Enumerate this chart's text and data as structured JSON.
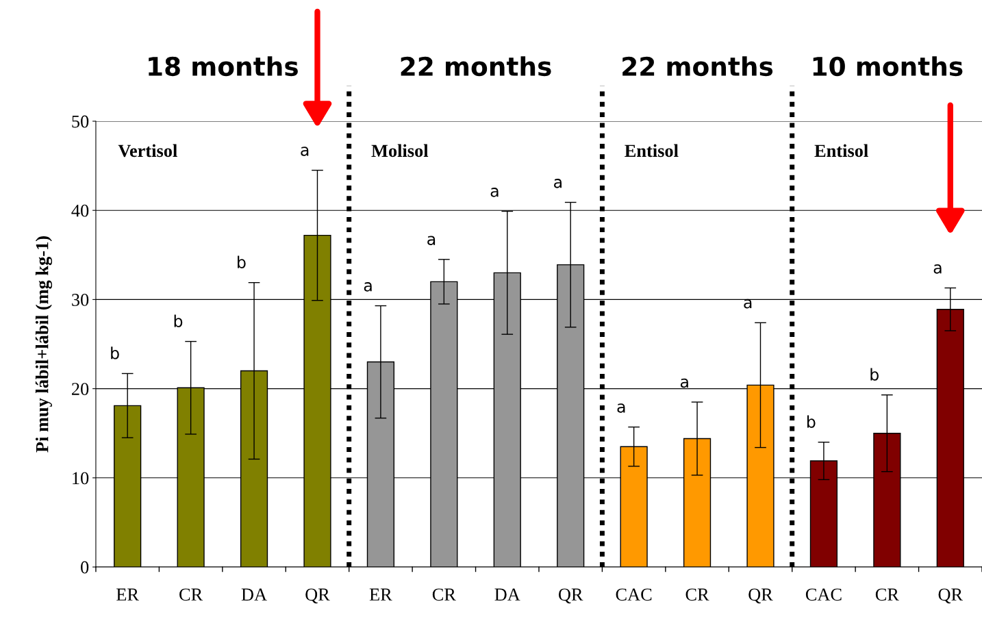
{
  "chart_data": {
    "type": "bar",
    "ylabel": "Pi muy lábil+lábil (mg kg-1)",
    "categories": [
      "ER",
      "CR",
      "DA",
      "QR",
      "ER",
      "CR",
      "DA",
      "QR",
      "CAC",
      "CR",
      "QR",
      "CAC",
      "CR",
      "QR"
    ],
    "values": [
      18.1,
      20.1,
      22.0,
      37.2,
      23.0,
      32.0,
      33.0,
      33.9,
      13.5,
      14.4,
      20.4,
      11.9,
      15.0,
      28.9
    ],
    "errors": [
      3.6,
      5.2,
      9.9,
      7.3,
      6.3,
      2.5,
      6.9,
      7.0,
      2.2,
      4.1,
      7.0,
      2.1,
      4.3,
      2.4
    ],
    "colors": [
      "#808000",
      "#808000",
      "#808000",
      "#808000",
      "#969696",
      "#969696",
      "#969696",
      "#969696",
      "#ff9900",
      "#ff9900",
      "#ff9900",
      "#800000",
      "#800000",
      "#800000"
    ],
    "annotations": [
      "b",
      "b",
      "b",
      "a",
      "a",
      "a",
      "a",
      "a",
      "a",
      "a",
      "a",
      "b",
      "b",
      "a",
      "18 months",
      "22 months",
      "22 months",
      "10 months",
      "Vertisol",
      "Molisol",
      "Entisol",
      "Entisol"
    ],
    "ylim": [
      0,
      50
    ],
    "yticks": [
      0,
      10,
      20,
      30,
      40,
      50
    ],
    "grid": "y"
  }
}
